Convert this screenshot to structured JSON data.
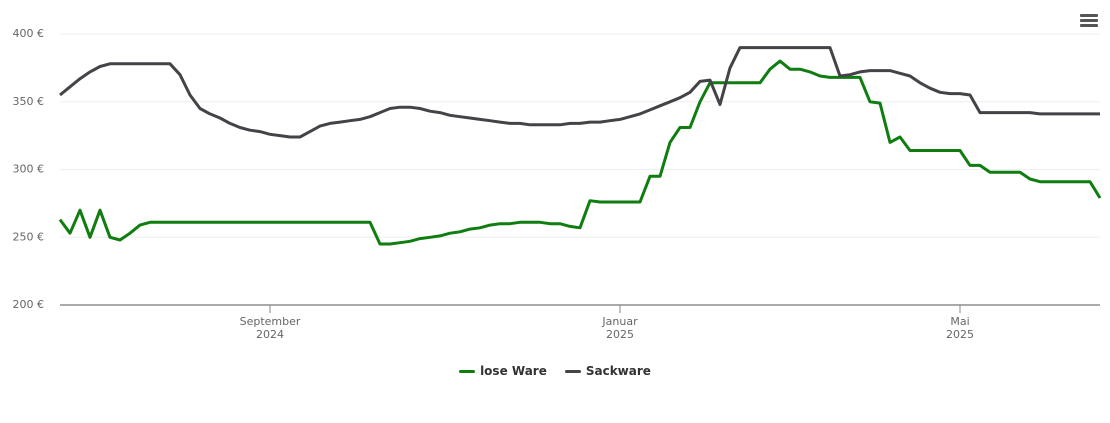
{
  "chart_data": {
    "type": "line",
    "categories": [
      null,
      null,
      null,
      null,
      null,
      null,
      null,
      null,
      null,
      null,
      null,
      null,
      null,
      null,
      null,
      null,
      null,
      null,
      null,
      null,
      null,
      "September 2024",
      null,
      null,
      null,
      null,
      null,
      null,
      null,
      null,
      null,
      null,
      null,
      null,
      null,
      null,
      null,
      null,
      null,
      null,
      null,
      null,
      null,
      null,
      null,
      null,
      null,
      null,
      null,
      null,
      null,
      null,
      null,
      null,
      null,
      null,
      "Januar 2025",
      null,
      null,
      null,
      null,
      null,
      null,
      null,
      null,
      null,
      null,
      null,
      null,
      null,
      null,
      null,
      null,
      null,
      null,
      null,
      null,
      null,
      null,
      null,
      null,
      null,
      null,
      null,
      null,
      null,
      null,
      null,
      null,
      null,
      "Mai 2025",
      null,
      null,
      null,
      null,
      null,
      null,
      null,
      null,
      null,
      null,
      null,
      null,
      null,
      null
    ],
    "series": [
      {
        "name": "lose Ware",
        "color": "#0f7d0f",
        "values": [
          263,
          253,
          270,
          250,
          270,
          250,
          248,
          253,
          259,
          261,
          261,
          261,
          261,
          261,
          261,
          261,
          261,
          261,
          261,
          261,
          261,
          261,
          261,
          261,
          261,
          261,
          261,
          261,
          261,
          261,
          261,
          261,
          245,
          245,
          246,
          247,
          249,
          250,
          251,
          253,
          254,
          256,
          257,
          259,
          260,
          260,
          261,
          261,
          261,
          260,
          260,
          258,
          257,
          277,
          276,
          276,
          276,
          276,
          276,
          295,
          295,
          320,
          331,
          331,
          350,
          364,
          364,
          364,
          364,
          364,
          364,
          374,
          380,
          374,
          374,
          372,
          369,
          368,
          368,
          368,
          368,
          350,
          349,
          320,
          324,
          314,
          314,
          314,
          314,
          314,
          314,
          303,
          303,
          298,
          298,
          298,
          298,
          293,
          291,
          291,
          291,
          291,
          291,
          291,
          279
        ]
      },
      {
        "name": "Sackware",
        "color": "#434348",
        "values": [
          355,
          361,
          367,
          372,
          376,
          378,
          378,
          378,
          378,
          378,
          378,
          378,
          370,
          355,
          345,
          341,
          338,
          334,
          331,
          329,
          328,
          326,
          325,
          324,
          324,
          328,
          332,
          334,
          335,
          336,
          337,
          339,
          342,
          345,
          346,
          346,
          345,
          343,
          342,
          340,
          339,
          338,
          337,
          336,
          335,
          334,
          334,
          333,
          333,
          333,
          333,
          334,
          334,
          335,
          335,
          336,
          337,
          339,
          341,
          344,
          347,
          350,
          353,
          357,
          365,
          366,
          348,
          375,
          390,
          390,
          390,
          390,
          390,
          390,
          390,
          390,
          390,
          390,
          369,
          370,
          372,
          373,
          373,
          373,
          371,
          369,
          364,
          360,
          357,
          356,
          356,
          355,
          342,
          342,
          342,
          342,
          342,
          342,
          341,
          341,
          341,
          341,
          341,
          341,
          341
        ]
      }
    ],
    "ylim": [
      200,
      400
    ],
    "yticks": [
      {
        "value": 200,
        "label": "200 €"
      },
      {
        "value": 250,
        "label": "250 €"
      },
      {
        "value": 300,
        "label": "300 €"
      },
      {
        "value": 350,
        "label": "350 €"
      },
      {
        "value": 400,
        "label": "400 €"
      }
    ],
    "grid": true
  }
}
